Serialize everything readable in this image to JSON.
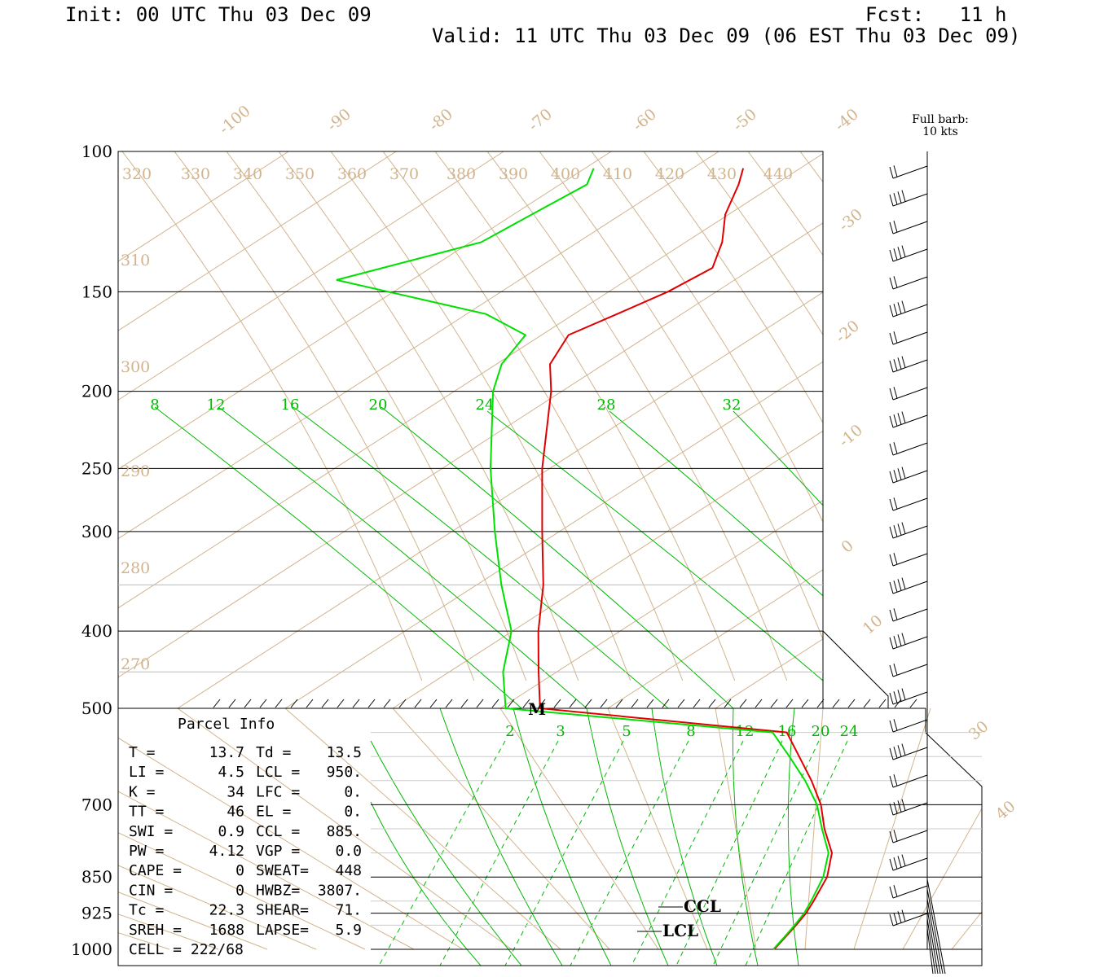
{
  "header": {
    "init": "Init: 00 UTC Thu 03 Dec 09",
    "fcst": "Fcst:   11 h",
    "valid": "Valid: 11 UTC Thu 03 Dec 09 (06 EST Thu 03 Dec 09)",
    "barb_note_1": "Full barb:",
    "barb_note_2": "10 kts"
  },
  "chart_data": {
    "type": "line",
    "pressure_levels": [
      {
        "label": "100",
        "p": 100
      },
      {
        "label": "150",
        "p": 150
      },
      {
        "label": "200",
        "p": 200
      },
      {
        "label": "250",
        "p": 250
      },
      {
        "label": "300",
        "p": 300
      },
      {
        "label": "400",
        "p": 400
      },
      {
        "label": "500",
        "p": 500
      },
      {
        "label": "700",
        "p": 700
      },
      {
        "label": "850",
        "p": 850
      },
      {
        "label": "925",
        "p": 925
      },
      {
        "label": "1000",
        "p": 1000
      }
    ],
    "temperature_isotherm_labels": [
      "-100",
      "-90",
      "-80",
      "-70",
      "-60",
      "-50",
      "-40",
      "-30",
      "-20",
      "-10",
      "0",
      "10",
      "30",
      "40"
    ],
    "theta_labels_top": [
      "320",
      "330",
      "340",
      "350",
      "360",
      "370",
      "380",
      "390",
      "400",
      "410",
      "420",
      "430",
      "440"
    ],
    "theta_labels_left": [
      "310",
      "300",
      "290",
      "280",
      "270"
    ],
    "mixing_ratio_labels_upper": [
      "8",
      "12",
      "16",
      "20",
      "24",
      "28",
      "32"
    ],
    "mixing_ratio_labels_lower": [
      "2",
      "3",
      "5",
      "8",
      "12",
      "16",
      "20",
      "24"
    ],
    "series": [
      {
        "name": "Temperature",
        "color": "#e00000",
        "points": [
          [
            1000,
            13.7
          ],
          [
            975,
            15.0
          ],
          [
            950,
            16.3
          ],
          [
            925,
            17.4
          ],
          [
            900,
            18.0
          ],
          [
            850,
            18.9
          ],
          [
            800,
            18.0
          ],
          [
            750,
            14.6
          ],
          [
            700,
            12.0
          ],
          [
            650,
            8.2
          ],
          [
            600,
            3.8
          ],
          [
            550,
            -0.6
          ],
          [
            500,
            -6.3
          ],
          [
            450,
            -11.7
          ],
          [
            400,
            -17.6
          ],
          [
            350,
            -23.8
          ],
          [
            300,
            -31.6
          ],
          [
            250,
            -40.7
          ],
          [
            200,
            -51.0
          ],
          [
            185,
            -55.0
          ],
          [
            170,
            -57.5
          ],
          [
            160,
            -56.0
          ],
          [
            150,
            -54.5
          ],
          [
            140,
            -53.8
          ],
          [
            130,
            -56.6
          ],
          [
            120,
            -60.3
          ],
          [
            110,
            -63.4
          ],
          [
            105,
            -65.3
          ]
        ]
      },
      {
        "name": "Dewpoint",
        "color": "#00e000",
        "points": [
          [
            1000,
            13.5
          ],
          [
            975,
            14.8
          ],
          [
            950,
            16.0
          ],
          [
            925,
            17.0
          ],
          [
            900,
            17.5
          ],
          [
            850,
            18.1
          ],
          [
            800,
            17.3
          ],
          [
            750,
            14.1
          ],
          [
            700,
            11.2
          ],
          [
            650,
            6.9
          ],
          [
            600,
            1.8
          ],
          [
            550,
            -3.5
          ],
          [
            500,
            -9.5
          ],
          [
            450,
            -15.0
          ],
          [
            400,
            -20.1
          ],
          [
            350,
            -27.7
          ],
          [
            300,
            -36.0
          ],
          [
            250,
            -45.5
          ],
          [
            200,
            -56.4
          ],
          [
            185,
            -59.5
          ],
          [
            170,
            -61.5
          ],
          [
            160,
            -68.2
          ],
          [
            145,
            -87.0
          ],
          [
            130,
            -79.0
          ],
          [
            120,
            -78.3
          ],
          [
            110,
            -77.5
          ],
          [
            105,
            -79.2
          ]
        ]
      }
    ],
    "annotations": [
      "M",
      "CCL",
      "LCL"
    ],
    "wind_barbs": "right-side column, 100 to 1000 hPa"
  },
  "parcel_info": {
    "title": "Parcel Info",
    "rows": [
      [
        "T    =",
        "13.7",
        "Td =",
        "13.5"
      ],
      [
        "LI   =",
        "4.5",
        "LCL =",
        "950."
      ],
      [
        "K    =",
        "34",
        "LFC =",
        "0."
      ],
      [
        "TT   =",
        "46",
        "EL  =",
        "0."
      ],
      [
        "SWI  =",
        "0.9",
        "CCL =",
        "885."
      ],
      [
        "PW   =",
        "4.12",
        "VGP =",
        "0.0"
      ],
      [
        "CAPE =",
        "0",
        "SWEAT=",
        "448"
      ],
      [
        "CIN  =",
        "0",
        "HWBZ=",
        "3807."
      ],
      [
        "Tc   =",
        "22.3",
        "SHEAR=",
        "71."
      ],
      [
        "SREH =",
        "1688",
        "LAPSE=",
        "5.9"
      ],
      [
        "CELL = 222/68",
        "",
        "",
        ""
      ]
    ]
  },
  "colors": {
    "temperature": "#e00000",
    "dewpoint": "#00e000",
    "isotherms": "#d2b48c",
    "mixing_ratio": "#00b800"
  }
}
